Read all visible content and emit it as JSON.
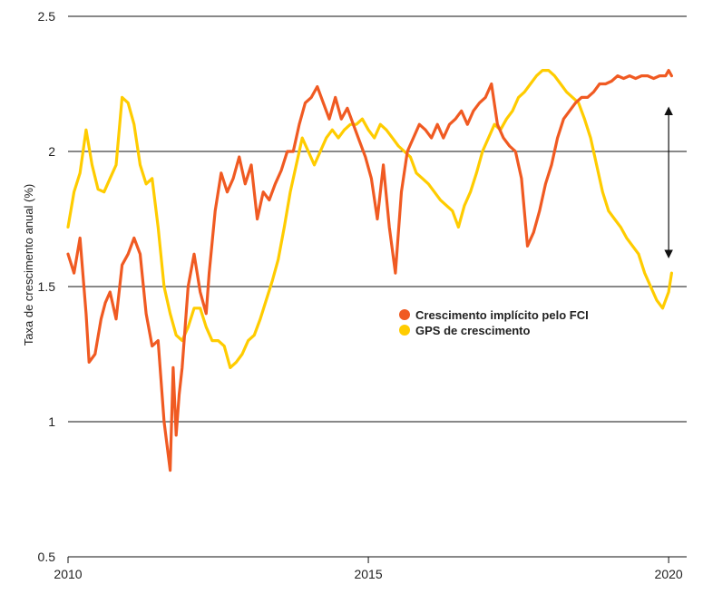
{
  "chart_data": {
    "type": "line",
    "title": "",
    "xlabel": "",
    "ylabel": "Taxa de crescimento anual (%)",
    "xlim": [
      2010,
      2020.3
    ],
    "ylim": [
      0.5,
      2.5
    ],
    "xticks": [
      2010,
      2015,
      2020
    ],
    "xtick_labels": [
      "2010",
      "2015",
      "2020"
    ],
    "yticks": [
      0.5,
      1,
      1.5,
      2,
      2.5
    ],
    "ytick_labels": [
      "0.5",
      "1",
      "1.5",
      "2",
      "2.5"
    ],
    "grid": "horizontal",
    "legend_position": "center-right",
    "annotations": [
      {
        "type": "double-arrow",
        "x": 2020.0,
        "y_from": 2.17,
        "y_to": 1.6,
        "label": ""
      }
    ],
    "series": [
      {
        "name": "Crescimento implícito pelo FCI",
        "color": "#f05a22",
        "x": [
          2010.0,
          2010.1,
          2010.2,
          2010.3,
          2010.35,
          2010.45,
          2010.55,
          2010.62,
          2010.7,
          2010.8,
          2010.9,
          2011.0,
          2011.1,
          2011.2,
          2011.3,
          2011.4,
          2011.5,
          2011.6,
          2011.7,
          2011.75,
          2011.8,
          2011.85,
          2011.9,
          2012.0,
          2012.1,
          2012.2,
          2012.3,
          2012.35,
          2012.45,
          2012.55,
          2012.65,
          2012.75,
          2012.85,
          2012.95,
          2013.05,
          2013.15,
          2013.25,
          2013.35,
          2013.45,
          2013.55,
          2013.65,
          2013.75,
          2013.85,
          2013.95,
          2014.05,
          2014.15,
          2014.25,
          2014.35,
          2014.45,
          2014.55,
          2014.65,
          2014.75,
          2014.85,
          2014.95,
          2015.05,
          2015.15,
          2015.25,
          2015.35,
          2015.45,
          2015.55,
          2015.65,
          2015.75,
          2015.85,
          2015.95,
          2016.05,
          2016.15,
          2016.25,
          2016.35,
          2016.45,
          2016.55,
          2016.65,
          2016.75,
          2016.85,
          2016.95,
          2017.05,
          2017.15,
          2017.25,
          2017.35,
          2017.45,
          2017.55,
          2017.65,
          2017.75,
          2017.85,
          2017.95,
          2018.05,
          2018.15,
          2018.25,
          2018.35,
          2018.45,
          2018.55,
          2018.65,
          2018.75,
          2018.85,
          2018.95,
          2019.05,
          2019.15,
          2019.25,
          2019.35,
          2019.45,
          2019.55,
          2019.65,
          2019.75,
          2019.85,
          2019.95,
          2020.0,
          2020.05
        ],
        "values": [
          1.62,
          1.55,
          1.68,
          1.4,
          1.22,
          1.25,
          1.38,
          1.44,
          1.48,
          1.38,
          1.58,
          1.62,
          1.68,
          1.62,
          1.4,
          1.28,
          1.3,
          1.0,
          0.82,
          1.2,
          0.95,
          1.1,
          1.2,
          1.5,
          1.62,
          1.48,
          1.4,
          1.55,
          1.78,
          1.92,
          1.85,
          1.9,
          1.98,
          1.88,
          1.95,
          1.75,
          1.85,
          1.82,
          1.88,
          1.93,
          2.0,
          2.0,
          2.1,
          2.18,
          2.2,
          2.24,
          2.18,
          2.12,
          2.2,
          2.12,
          2.16,
          2.1,
          2.04,
          1.98,
          1.9,
          1.75,
          1.95,
          1.72,
          1.55,
          1.85,
          2.0,
          2.05,
          2.1,
          2.08,
          2.05,
          2.1,
          2.05,
          2.1,
          2.12,
          2.15,
          2.1,
          2.15,
          2.18,
          2.2,
          2.25,
          2.1,
          2.05,
          2.02,
          2.0,
          1.9,
          1.65,
          1.7,
          1.78,
          1.88,
          1.95,
          2.05,
          2.12,
          2.15,
          2.18,
          2.2,
          2.2,
          2.22,
          2.25,
          2.25,
          2.26,
          2.28,
          2.27,
          2.28,
          2.27,
          2.28,
          2.28,
          2.27,
          2.28,
          2.28,
          2.3,
          2.28
        ]
      },
      {
        "name": "GPS de crescimento",
        "color": "#ffcc00",
        "x": [
          2010.0,
          2010.1,
          2010.2,
          2010.3,
          2010.4,
          2010.5,
          2010.6,
          2010.7,
          2010.8,
          2010.9,
          2011.0,
          2011.1,
          2011.2,
          2011.3,
          2011.4,
          2011.5,
          2011.6,
          2011.7,
          2011.8,
          2011.9,
          2012.0,
          2012.1,
          2012.2,
          2012.3,
          2012.4,
          2012.5,
          2012.6,
          2012.7,
          2012.8,
          2012.9,
          2013.0,
          2013.1,
          2013.2,
          2013.3,
          2013.4,
          2013.5,
          2013.6,
          2013.7,
          2013.8,
          2013.9,
          2014.0,
          2014.1,
          2014.2,
          2014.3,
          2014.4,
          2014.5,
          2014.6,
          2014.7,
          2014.8,
          2014.9,
          2015.0,
          2015.1,
          2015.2,
          2015.3,
          2015.4,
          2015.5,
          2015.6,
          2015.7,
          2015.8,
          2015.9,
          2016.0,
          2016.1,
          2016.2,
          2016.3,
          2016.4,
          2016.5,
          2016.6,
          2016.7,
          2016.8,
          2016.9,
          2017.0,
          2017.1,
          2017.2,
          2017.3,
          2017.4,
          2017.5,
          2017.6,
          2017.7,
          2017.8,
          2017.9,
          2018.0,
          2018.1,
          2018.2,
          2018.3,
          2018.4,
          2018.5,
          2018.6,
          2018.7,
          2018.8,
          2018.9,
          2019.0,
          2019.1,
          2019.2,
          2019.3,
          2019.4,
          2019.5,
          2019.6,
          2019.7,
          2019.8,
          2019.9,
          2020.0,
          2020.05
        ],
        "values": [
          1.72,
          1.85,
          1.92,
          2.08,
          1.95,
          1.86,
          1.85,
          1.9,
          1.95,
          2.2,
          2.18,
          2.1,
          1.95,
          1.88,
          1.9,
          1.72,
          1.5,
          1.4,
          1.32,
          1.3,
          1.35,
          1.42,
          1.42,
          1.35,
          1.3,
          1.3,
          1.28,
          1.2,
          1.22,
          1.25,
          1.3,
          1.32,
          1.38,
          1.45,
          1.52,
          1.6,
          1.72,
          1.85,
          1.95,
          2.05,
          2.0,
          1.95,
          2.0,
          2.05,
          2.08,
          2.05,
          2.08,
          2.1,
          2.1,
          2.12,
          2.08,
          2.05,
          2.1,
          2.08,
          2.05,
          2.02,
          2.0,
          1.98,
          1.92,
          1.9,
          1.88,
          1.85,
          1.82,
          1.8,
          1.78,
          1.72,
          1.8,
          1.85,
          1.92,
          2.0,
          2.05,
          2.1,
          2.08,
          2.12,
          2.15,
          2.2,
          2.22,
          2.25,
          2.28,
          2.3,
          2.3,
          2.28,
          2.25,
          2.22,
          2.2,
          2.18,
          2.12,
          2.05,
          1.95,
          1.85,
          1.78,
          1.75,
          1.72,
          1.68,
          1.65,
          1.62,
          1.55,
          1.5,
          1.45,
          1.42,
          1.48,
          1.55
        ]
      }
    ]
  }
}
